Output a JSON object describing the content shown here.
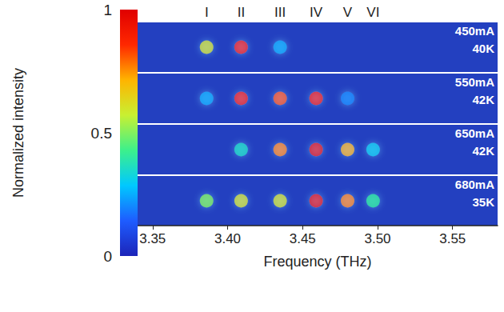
{
  "chart_data": {
    "type": "heatmap",
    "x_label": "Frequency (THz)",
    "xlim": [
      3.34,
      3.58
    ],
    "xticks": [
      3.35,
      {
        "value": 3.4,
        "label": "3.40"
      },
      3.45,
      {
        "value": 3.5,
        "label": "3.50"
      },
      3.55
    ],
    "modes": {
      "labels": [
        "I",
        "II",
        "III",
        "IV",
        "V",
        "VI"
      ],
      "x": [
        3.386,
        3.409,
        3.435,
        3.459,
        3.48,
        3.497
      ]
    },
    "colorbar": {
      "label": "Normalized intensity",
      "range": [
        0,
        1
      ],
      "ticks": [
        0,
        0.5,
        1
      ]
    },
    "rows": [
      {
        "current": "450mA",
        "temperature": "40K",
        "x": [
          3.386,
          3.409,
          3.435
        ],
        "intensity": [
          0.6,
          0.9,
          0.25
        ]
      },
      {
        "current": "550mA",
        "temperature": "42K",
        "x": [
          3.386,
          3.409,
          3.435,
          3.459,
          3.48
        ],
        "intensity": [
          0.25,
          0.9,
          0.8,
          0.9,
          0.2
        ]
      },
      {
        "current": "650mA",
        "temperature": "42K",
        "x": [
          3.409,
          3.435,
          3.459,
          3.48,
          3.497
        ],
        "intensity": [
          0.35,
          0.75,
          0.95,
          0.7,
          0.3
        ]
      },
      {
        "current": "680mA",
        "temperature": "35K",
        "x": [
          3.386,
          3.409,
          3.435,
          3.459,
          3.48,
          3.497
        ],
        "intensity": [
          0.5,
          0.6,
          0.6,
          0.95,
          0.75,
          0.4
        ]
      }
    ]
  }
}
